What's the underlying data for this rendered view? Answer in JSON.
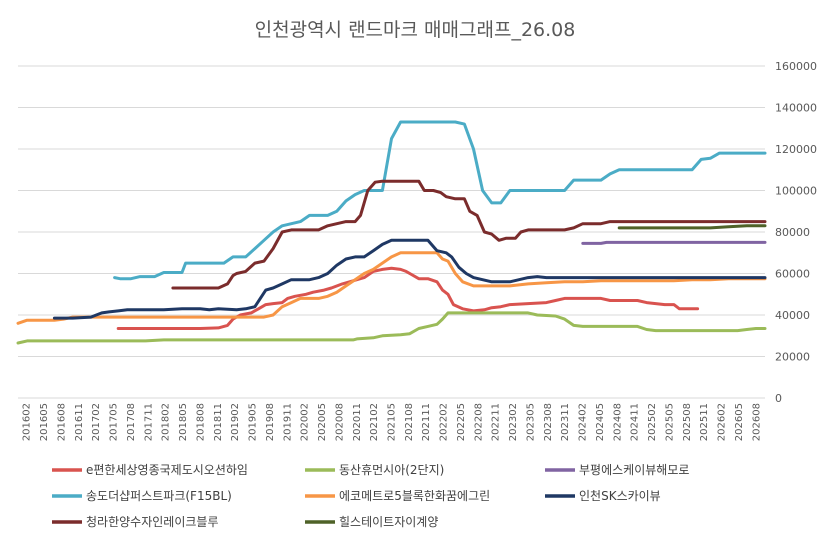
{
  "chart_data": {
    "type": "line",
    "title": "인천광역시 랜드마크 매매그래프_26.08",
    "xlabel": "",
    "ylabel": "",
    "ylim": [
      0,
      160000
    ],
    "y_ticks": [
      0,
      20000,
      40000,
      60000,
      80000,
      100000,
      120000,
      140000,
      160000
    ],
    "y_tick_labels": [
      "0",
      "20000",
      "40000",
      "60000",
      "80000",
      "100000",
      "120000",
      "140000",
      "160000"
    ],
    "y_axis_position": "right",
    "grid": true,
    "legend_position": "bottom",
    "x_tick_labels": [
      "201602",
      "201605",
      "201608",
      "201611",
      "201702",
      "201705",
      "201708",
      "201711",
      "201802",
      "201805",
      "201808",
      "201811",
      "201902",
      "201905",
      "201908",
      "201911",
      "202002",
      "202005",
      "202008",
      "202011",
      "202102",
      "202105",
      "202108",
      "202111",
      "202202",
      "202205",
      "202208",
      "202211",
      "202302",
      "202305",
      "202308",
      "202311",
      "202402",
      "202405",
      "202408",
      "202411",
      "202502",
      "202505",
      "202508",
      "202511",
      "202602",
      "202605",
      "202608"
    ],
    "series": [
      {
        "name": "e편한세상영종국제도시오션하임",
        "color": "#d9534f",
        "points": [
          [
            1.5,
            33500
          ],
          [
            6,
            33500
          ],
          [
            7,
            33800
          ],
          [
            7.5,
            35000
          ],
          [
            7.8,
            38000
          ],
          [
            8.2,
            40000
          ],
          [
            8.8,
            41000
          ],
          [
            9.2,
            43000
          ],
          [
            9.6,
            45000
          ],
          [
            10,
            45500
          ],
          [
            10.5,
            46000
          ],
          [
            10.8,
            48000
          ],
          [
            11.2,
            49000
          ],
          [
            11.8,
            50000
          ],
          [
            12.2,
            51000
          ],
          [
            12.8,
            52000
          ],
          [
            13.2,
            53000
          ],
          [
            13.8,
            55000
          ],
          [
            14.2,
            56000
          ],
          [
            14.6,
            57000
          ],
          [
            15,
            58000
          ],
          [
            15.5,
            61000
          ],
          [
            16,
            62000
          ],
          [
            16.5,
            62500
          ],
          [
            17,
            62000
          ],
          [
            17.3,
            61000
          ],
          [
            17.6,
            59500
          ],
          [
            18,
            57500
          ],
          [
            18.5,
            57500
          ],
          [
            19,
            56000
          ],
          [
            19.3,
            52000
          ],
          [
            19.6,
            50000
          ],
          [
            19.9,
            45000
          ],
          [
            20.4,
            43000
          ],
          [
            21,
            42000
          ],
          [
            21.6,
            42500
          ],
          [
            22,
            43500
          ],
          [
            22.5,
            44000
          ],
          [
            23,
            45000
          ],
          [
            24,
            45500
          ],
          [
            25,
            46000
          ],
          [
            25.5,
            47000
          ],
          [
            26,
            48000
          ],
          [
            28,
            48000
          ],
          [
            28.5,
            47000
          ],
          [
            30,
            47000
          ],
          [
            30.5,
            46000
          ],
          [
            31,
            45500
          ],
          [
            31.5,
            45000
          ],
          [
            32,
            45000
          ],
          [
            32.3,
            43000
          ],
          [
            33.3,
            43000
          ]
        ]
      },
      {
        "name": "동산휴먼시아(2단지)",
        "color": "#9bbb59",
        "points": [
          [
            -4,
            26500
          ],
          [
            -3.5,
            27500
          ],
          [
            -1,
            27500
          ],
          [
            3,
            27500
          ],
          [
            4,
            28000
          ],
          [
            11,
            28000
          ],
          [
            14.4,
            28000
          ],
          [
            14.6,
            28500
          ],
          [
            15.5,
            29000
          ],
          [
            16,
            30000
          ],
          [
            17,
            30500
          ],
          [
            17.5,
            31000
          ],
          [
            18,
            33500
          ],
          [
            18.5,
            34500
          ],
          [
            19,
            35500
          ],
          [
            19.3,
            38000
          ],
          [
            19.6,
            41000
          ],
          [
            24,
            41000
          ],
          [
            24.5,
            40000
          ],
          [
            25.5,
            39500
          ],
          [
            26,
            38000
          ],
          [
            26.5,
            35000
          ],
          [
            27,
            34500
          ],
          [
            30,
            34500
          ],
          [
            30.5,
            33000
          ],
          [
            31,
            32500
          ],
          [
            35,
            32500
          ],
          [
            35.5,
            32500
          ],
          [
            36,
            33000
          ],
          [
            36.5,
            33500
          ],
          [
            37,
            33500
          ]
        ]
      },
      {
        "name": "부평에스케이뷰해모로",
        "color": "#8064a2",
        "points": [
          [
            27,
            74500
          ],
          [
            28,
            74500
          ],
          [
            28.3,
            75000
          ],
          [
            31,
            75000
          ],
          [
            33,
            75000
          ],
          [
            37,
            75000
          ]
        ]
      },
      {
        "name": "송도더샵퍼스트파크(F15BL)",
        "color": "#4bacc6",
        "points": [
          [
            1.3,
            58000
          ],
          [
            1.6,
            57500
          ],
          [
            2.2,
            57500
          ],
          [
            2.7,
            58500
          ],
          [
            3.5,
            58500
          ],
          [
            4,
            60500
          ],
          [
            5,
            60500
          ],
          [
            5.2,
            65000
          ],
          [
            6.5,
            65000
          ],
          [
            7.3,
            65000
          ],
          [
            7.8,
            68000
          ],
          [
            8.5,
            68000
          ],
          [
            9,
            72000
          ],
          [
            9.5,
            76000
          ],
          [
            10,
            80000
          ],
          [
            10.5,
            83000
          ],
          [
            11,
            84000
          ],
          [
            11.5,
            85000
          ],
          [
            12,
            88000
          ],
          [
            13,
            88000
          ],
          [
            13.5,
            90000
          ],
          [
            14,
            95000
          ],
          [
            14.5,
            98000
          ],
          [
            15,
            100000
          ],
          [
            16,
            100000
          ],
          [
            16.5,
            125000
          ],
          [
            17,
            133000
          ],
          [
            19,
            133000
          ],
          [
            20,
            133000
          ],
          [
            20.5,
            132000
          ],
          [
            21,
            120000
          ],
          [
            21.5,
            100000
          ],
          [
            22,
            94000
          ],
          [
            22.5,
            94000
          ],
          [
            23,
            100000
          ],
          [
            24,
            100000
          ],
          [
            26,
            100000
          ],
          [
            26.5,
            105000
          ],
          [
            28,
            105000
          ],
          [
            28.5,
            108000
          ],
          [
            29,
            110000
          ],
          [
            30,
            110000
          ],
          [
            31,
            110000
          ],
          [
            32,
            110000
          ],
          [
            33,
            110000
          ],
          [
            33.5,
            115000
          ],
          [
            34,
            115500
          ],
          [
            34.5,
            118000
          ],
          [
            36,
            118000
          ],
          [
            37,
            118000
          ]
        ]
      },
      {
        "name": "에코메트로5블록한화꿈에그린",
        "color": "#f79646",
        "points": [
          [
            -4,
            36000
          ],
          [
            -3.5,
            37500
          ],
          [
            -2,
            37500
          ],
          [
            -1.5,
            38000
          ],
          [
            -1,
            39000
          ],
          [
            0,
            39000
          ],
          [
            3,
            39000
          ],
          [
            8,
            39000
          ],
          [
            9.5,
            39000
          ],
          [
            10,
            40000
          ],
          [
            10.5,
            44000
          ],
          [
            11,
            46000
          ],
          [
            11.5,
            48000
          ],
          [
            12.5,
            48000
          ],
          [
            13,
            49000
          ],
          [
            13.5,
            51000
          ],
          [
            14,
            54000
          ],
          [
            14.5,
            57000
          ],
          [
            15,
            60000
          ],
          [
            15.5,
            62000
          ],
          [
            16,
            65000
          ],
          [
            16.5,
            68000
          ],
          [
            17,
            70000
          ],
          [
            18,
            70000
          ],
          [
            19,
            70000
          ],
          [
            19.3,
            67000
          ],
          [
            19.6,
            66000
          ],
          [
            20,
            60000
          ],
          [
            20.4,
            56000
          ],
          [
            21,
            54000
          ],
          [
            22,
            54000
          ],
          [
            23,
            54000
          ],
          [
            24,
            55000
          ],
          [
            25,
            55500
          ],
          [
            26,
            56000
          ],
          [
            27,
            56000
          ],
          [
            28,
            56500
          ],
          [
            29,
            56500
          ],
          [
            30,
            56500
          ],
          [
            31,
            56500
          ],
          [
            32,
            56500
          ],
          [
            33,
            57000
          ],
          [
            34,
            57000
          ],
          [
            35,
            57500
          ],
          [
            37,
            57500
          ]
        ]
      },
      {
        "name": "인천SK스카이뷰",
        "color": "#1f3864",
        "points": [
          [
            -2,
            38500
          ],
          [
            -1,
            38500
          ],
          [
            0,
            39000
          ],
          [
            0.3,
            40000
          ],
          [
            0.6,
            41000
          ],
          [
            1,
            41500
          ],
          [
            1.5,
            42000
          ],
          [
            2,
            42500
          ],
          [
            3,
            42500
          ],
          [
            4,
            42500
          ],
          [
            5,
            43000
          ],
          [
            6,
            43000
          ],
          [
            6.5,
            42500
          ],
          [
            7,
            43000
          ],
          [
            8,
            42500
          ],
          [
            8.5,
            43000
          ],
          [
            9,
            44000
          ],
          [
            9.3,
            48000
          ],
          [
            9.6,
            52000
          ],
          [
            10,
            53000
          ],
          [
            10.5,
            55000
          ],
          [
            11,
            57000
          ],
          [
            11.5,
            57000
          ],
          [
            12,
            57000
          ],
          [
            12.5,
            58000
          ],
          [
            13,
            60000
          ],
          [
            13.5,
            64000
          ],
          [
            14,
            67000
          ],
          [
            14.5,
            68000
          ],
          [
            15,
            68000
          ],
          [
            15.5,
            71000
          ],
          [
            16,
            74000
          ],
          [
            16.5,
            76000
          ],
          [
            17,
            76000
          ],
          [
            18,
            76000
          ],
          [
            18.5,
            76000
          ],
          [
            19,
            71000
          ],
          [
            19.5,
            70000
          ],
          [
            19.8,
            68000
          ],
          [
            20.2,
            63000
          ],
          [
            20.6,
            60000
          ],
          [
            21,
            58000
          ],
          [
            21.5,
            57000
          ],
          [
            22,
            56000
          ],
          [
            23,
            56000
          ],
          [
            24,
            58000
          ],
          [
            24.5,
            58500
          ],
          [
            25,
            58000
          ],
          [
            26,
            58000
          ],
          [
            28,
            58000
          ],
          [
            30,
            58000
          ],
          [
            32,
            58000
          ],
          [
            34,
            58000
          ],
          [
            37,
            58000
          ]
        ]
      },
      {
        "name": "청라한양수자인레이크블루",
        "color": "#7b2c2c",
        "points": [
          [
            4.5,
            53000
          ],
          [
            6,
            53000
          ],
          [
            7,
            53000
          ],
          [
            7.5,
            55000
          ],
          [
            7.8,
            59000
          ],
          [
            8,
            60000
          ],
          [
            8.5,
            61000
          ],
          [
            9,
            65000
          ],
          [
            9.5,
            66000
          ],
          [
            10,
            72000
          ],
          [
            10.5,
            80000
          ],
          [
            11,
            81000
          ],
          [
            12,
            81000
          ],
          [
            12.5,
            81000
          ],
          [
            13,
            83000
          ],
          [
            13.5,
            84000
          ],
          [
            14,
            85000
          ],
          [
            14.5,
            85000
          ],
          [
            14.8,
            88000
          ],
          [
            15.2,
            100000
          ],
          [
            15.6,
            104000
          ],
          [
            16,
            104500
          ],
          [
            17,
            104500
          ],
          [
            18,
            104500
          ],
          [
            18.3,
            100000
          ],
          [
            18.8,
            100000
          ],
          [
            19.2,
            99000
          ],
          [
            19.5,
            97000
          ],
          [
            20,
            96000
          ],
          [
            20.5,
            96000
          ],
          [
            20.8,
            90000
          ],
          [
            21.2,
            88000
          ],
          [
            21.6,
            80000
          ],
          [
            22,
            79000
          ],
          [
            22.4,
            76000
          ],
          [
            22.8,
            77000
          ],
          [
            23.3,
            77000
          ],
          [
            23.6,
            80000
          ],
          [
            24,
            81000
          ],
          [
            25,
            81000
          ],
          [
            26,
            81000
          ],
          [
            26.5,
            82000
          ],
          [
            27,
            84000
          ],
          [
            28,
            84000
          ],
          [
            28.5,
            85000
          ],
          [
            30,
            85000
          ],
          [
            32,
            85000
          ],
          [
            34,
            85000
          ],
          [
            37,
            85000
          ]
        ]
      },
      {
        "name": "힐스테이트자이계양",
        "color": "#4f6228",
        "points": [
          [
            29,
            82000
          ],
          [
            31,
            82000
          ],
          [
            33,
            82000
          ],
          [
            34,
            82000
          ],
          [
            35,
            82500
          ],
          [
            36,
            83000
          ],
          [
            37,
            83000
          ]
        ]
      }
    ],
    "x_start": -4,
    "x_end": 37
  }
}
